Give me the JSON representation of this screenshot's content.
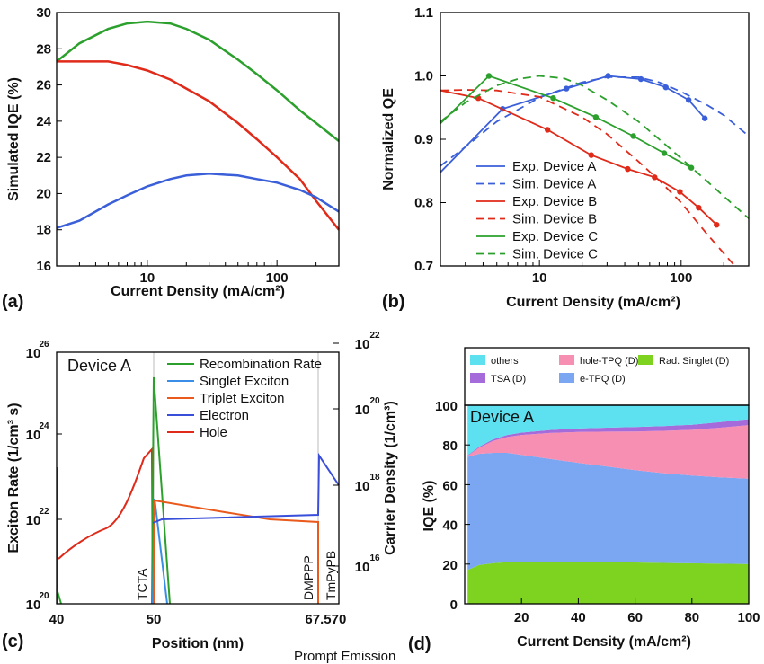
{
  "chart_data": [
    {
      "panel": "(a)",
      "type": "line",
      "xlabel": "Current Density (mA/cm²)",
      "ylabel": "Simulated IQE (%)",
      "xscale": "log",
      "xlim": [
        2,
        300
      ],
      "ylim": [
        16,
        30
      ],
      "xticks": [
        "10",
        "100"
      ],
      "yticks": [
        "16",
        "18",
        "20",
        "22",
        "24",
        "26",
        "28",
        "30"
      ],
      "grid": false,
      "series": [
        {
          "color": "#2ca02c",
          "x": [
            2,
            3,
            5,
            7,
            10,
            15,
            20,
            30,
            50,
            70,
            100,
            150,
            200,
            300
          ],
          "y": [
            27.3,
            28.3,
            29.1,
            29.4,
            29.5,
            29.4,
            29.1,
            28.5,
            27.4,
            26.6,
            25.7,
            24.6,
            23.9,
            22.9
          ]
        },
        {
          "color": "#e02a1a",
          "x": [
            2,
            3,
            5,
            7,
            10,
            15,
            20,
            30,
            50,
            70,
            100,
            150,
            200,
            300
          ],
          "y": [
            27.3,
            27.3,
            27.3,
            27.1,
            26.8,
            26.3,
            25.8,
            25.1,
            23.9,
            23.0,
            22.0,
            20.8,
            19.6,
            18.0
          ]
        },
        {
          "color": "#3a5fd9",
          "x": [
            2,
            3,
            5,
            7,
            10,
            15,
            20,
            30,
            50,
            70,
            100,
            150,
            200,
            300
          ],
          "y": [
            18.1,
            18.5,
            19.4,
            19.9,
            20.4,
            20.8,
            21.0,
            21.1,
            21.0,
            20.8,
            20.6,
            20.2,
            19.8,
            19.0
          ]
        }
      ]
    },
    {
      "panel": "(b)",
      "type": "line",
      "xlabel": "Current Density (mA/cm²)",
      "ylabel": "Normalized QE",
      "xscale": "log",
      "xlim": [
        2,
        300
      ],
      "ylim": [
        0.7,
        1.1
      ],
      "xticks": [
        "10",
        "100"
      ],
      "yticks": [
        "0.7",
        "0.8",
        "0.9",
        "1.0",
        "1.1"
      ],
      "legend_position": "lower-left",
      "series": [
        {
          "name": "Exp. Device A",
          "color": "#3a5fd9",
          "style": "solid",
          "x": [
            2,
            5.5,
            15.5,
            30.5,
            52,
            78,
            113,
            147
          ],
          "y": [
            0.848,
            0.948,
            0.98,
            1.0,
            0.995,
            0.982,
            0.962,
            0.933
          ]
        },
        {
          "name": "Sim. Device A",
          "color": "#3a5fd9",
          "style": "dashed",
          "x": [
            2,
            3,
            5,
            10,
            20,
            30,
            50,
            70,
            100,
            150,
            200,
            300
          ],
          "y": [
            0.858,
            0.888,
            0.928,
            0.966,
            0.99,
            0.998,
            0.998,
            0.99,
            0.975,
            0.955,
            0.938,
            0.905
          ]
        },
        {
          "name": "Exp. Device B",
          "color": "#e02a1a",
          "style": "solid",
          "x": [
            2,
            3.7,
            11.4,
            23.2,
            42,
            65,
            98,
            133,
            178
          ],
          "y": [
            0.977,
            0.965,
            0.915,
            0.875,
            0.853,
            0.84,
            0.817,
            0.792,
            0.765
          ]
        },
        {
          "name": "Sim. Device B",
          "color": "#e02a1a",
          "style": "dashed",
          "x": [
            2,
            3,
            5,
            10,
            20,
            30,
            50,
            70,
            100,
            150,
            200,
            250
          ],
          "y": [
            0.977,
            0.978,
            0.977,
            0.967,
            0.935,
            0.908,
            0.865,
            0.835,
            0.8,
            0.752,
            0.72,
            0.695
          ]
        },
        {
          "name": "Exp. Device C",
          "color": "#2ca02c",
          "style": "solid",
          "x": [
            2,
            4.4,
            12.5,
            25,
            46,
            76,
            118
          ],
          "y": [
            0.925,
            1.0,
            0.965,
            0.935,
            0.905,
            0.878,
            0.855
          ]
        },
        {
          "name": "Sim. Device C",
          "color": "#2ca02c",
          "style": "dashed",
          "x": [
            2,
            3,
            5,
            7,
            10,
            15,
            20,
            30,
            50,
            70,
            100,
            150,
            200,
            300
          ],
          "y": [
            0.928,
            0.958,
            0.985,
            0.995,
            1.0,
            0.996,
            0.985,
            0.962,
            0.928,
            0.9,
            0.87,
            0.835,
            0.81,
            0.775
          ]
        }
      ]
    },
    {
      "panel": "(c)",
      "type": "line",
      "xlabel": "Position (nm)",
      "ylabel": "Exciton Rate (1/cm³ s)",
      "ylabel_right": "Carrier Density (1/cm³)",
      "xticks": [
        "40",
        "50",
        "67.5",
        "70"
      ],
      "yticks": [
        {
          "base": "10",
          "exp": "20"
        },
        {
          "base": "10",
          "exp": "22"
        },
        {
          "base": "10",
          "exp": "24"
        },
        {
          "base": "10",
          "exp": "26"
        }
      ],
      "yticks_right": [
        {
          "base": "10",
          "exp": "16"
        },
        {
          "base": "10",
          "exp": "18"
        },
        {
          "base": "10",
          "exp": "20"
        },
        {
          "base": "10",
          "exp": "22"
        }
      ],
      "annotation": "Device A",
      "regions": [
        "TCTA",
        "DMPPP",
        "TmPyPB"
      ],
      "legend_position": "top-right",
      "series": [
        {
          "name": "Recombination Rate",
          "color": "#2ca02c"
        },
        {
          "name": "Singlet Exciton",
          "color": "#3b8ee8"
        },
        {
          "name": "Triplet Exciton",
          "color": "#ea5a1c"
        },
        {
          "name": "Electron",
          "color": "#3a4fd9"
        },
        {
          "name": "Hole",
          "color": "#e02a1a"
        }
      ]
    },
    {
      "panel": "(d)",
      "type": "area",
      "xlabel": "Current Density (mA/cm²)",
      "ylabel": "IQE (%)",
      "xlim": [
        0,
        100
      ],
      "ylim": [
        0,
        100
      ],
      "xticks": [
        "20",
        "40",
        "60",
        "80",
        "100"
      ],
      "yticks": [
        "0",
        "20",
        "40",
        "60",
        "80",
        "100"
      ],
      "annotation": "Device A",
      "x": [
        1,
        5,
        10,
        15,
        20,
        30,
        40,
        50,
        60,
        70,
        80,
        90,
        100
      ],
      "series": [
        {
          "name": "Rad. Singlet (D)",
          "color": "#7ed321",
          "values": [
            17,
            19.5,
            20.5,
            21,
            21,
            21,
            21,
            21,
            20.8,
            20.6,
            20.4,
            20.2,
            20
          ]
        },
        {
          "name": "e-TPQ (D)",
          "color": "#7aa6f2",
          "values": [
            57,
            56,
            55.5,
            55,
            54,
            52,
            50,
            48.2,
            46.5,
            45.2,
            44.2,
            43.5,
            43
          ]
        },
        {
          "name": "hole-TPQ (D)",
          "color": "#f78fb3",
          "values": [
            0.5,
            3,
            6,
            8,
            10,
            13,
            15.5,
            17.5,
            19.5,
            21.3,
            23,
            25,
            27
          ]
        },
        {
          "name": "TSA (D)",
          "color": "#a66bdb",
          "values": [
            0.3,
            0.5,
            0.8,
            1,
            1.2,
            1.5,
            1.8,
            2,
            2.2,
            2.4,
            2.6,
            2.8,
            3
          ]
        },
        {
          "name": "others",
          "color": "#5de0ef",
          "values": [
            25.2,
            21,
            17.2,
            15,
            13.8,
            12.5,
            11.7,
            11.3,
            11,
            10.5,
            9.8,
            8.5,
            7
          ]
        }
      ]
    }
  ],
  "footer_text": "Prompt Emission"
}
